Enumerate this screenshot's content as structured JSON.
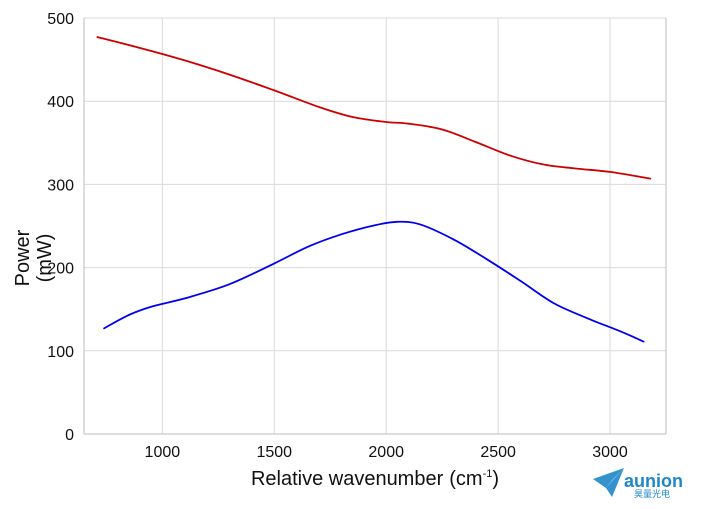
{
  "chart_data": {
    "type": "line",
    "title": "",
    "xlabel": "Relative wavenumber",
    "xlabel_unit_base": "(cm",
    "xlabel_unit_exp": "-1",
    "xlabel_unit_close": ")",
    "ylabel_line1": "Power",
    "ylabel_line2": "(mW)",
    "xlim": [
      650,
      3250
    ],
    "ylim": [
      0,
      500
    ],
    "xticks": [
      1000,
      1500,
      2000,
      2500,
      3000
    ],
    "yticks": [
      0,
      100,
      200,
      300,
      400,
      500
    ],
    "grid": true,
    "legend": false,
    "series": [
      {
        "color": "#cc0000",
        "points": [
          [
            710,
            477
          ],
          [
            900,
            464
          ],
          [
            1100,
            449
          ],
          [
            1300,
            432
          ],
          [
            1500,
            413
          ],
          [
            1700,
            393
          ],
          [
            1850,
            381
          ],
          [
            2000,
            375
          ],
          [
            2100,
            373
          ],
          [
            2250,
            366
          ],
          [
            2400,
            351
          ],
          [
            2550,
            335
          ],
          [
            2700,
            324
          ],
          [
            2850,
            319
          ],
          [
            3000,
            315
          ],
          [
            3180,
            307
          ]
        ]
      },
      {
        "color": "#0000ee",
        "points": [
          [
            740,
            127
          ],
          [
            850,
            143
          ],
          [
            950,
            153
          ],
          [
            1100,
            163
          ],
          [
            1300,
            180
          ],
          [
            1500,
            205
          ],
          [
            1650,
            225
          ],
          [
            1800,
            240
          ],
          [
            1950,
            251
          ],
          [
            2050,
            255
          ],
          [
            2150,
            252
          ],
          [
            2300,
            234
          ],
          [
            2450,
            210
          ],
          [
            2600,
            184
          ],
          [
            2750,
            157
          ],
          [
            2900,
            139
          ],
          [
            3050,
            123
          ],
          [
            3150,
            111
          ]
        ]
      }
    ]
  },
  "watermark": {
    "brand": "aunion",
    "sub": "昊量光电",
    "color": "#1e87c8"
  }
}
